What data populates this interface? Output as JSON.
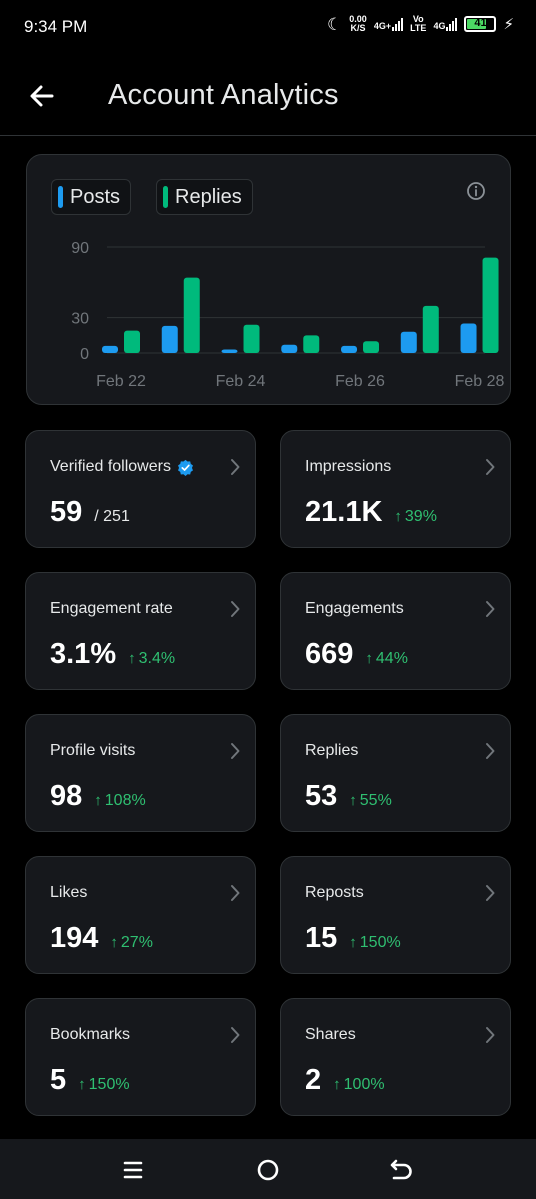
{
  "status": {
    "time": "9:34 PM",
    "speed_top": "0.00",
    "speed_bottom": "K/S",
    "sig1_label": "4G+",
    "volte_top": "Vo",
    "volte_bottom": "LTE",
    "sig2_label": "4G",
    "battery": "41"
  },
  "header": {
    "title": "Account Analytics"
  },
  "legend": {
    "posts": "Posts",
    "replies": "Replies"
  },
  "colors": {
    "posts": "#1d9bf0",
    "replies": "#00ba7c",
    "positive": "#2fbf71",
    "verified": "#1d9bf0"
  },
  "chart_data": {
    "type": "bar",
    "categories": [
      "Feb 22",
      "Feb 23",
      "Feb 24",
      "Feb 25",
      "Feb 26",
      "Feb 27",
      "Feb 28"
    ],
    "tick_labels": [
      "Feb 22",
      "Feb 24",
      "Feb 26",
      "Feb 28"
    ],
    "series": [
      {
        "name": "Posts",
        "values": [
          6,
          23,
          3,
          7,
          6,
          18,
          25
        ]
      },
      {
        "name": "Replies",
        "values": [
          19,
          64,
          24,
          15,
          10,
          40,
          81
        ]
      }
    ],
    "y_ticks": [
      0,
      30,
      90
    ],
    "ylim": [
      0,
      90
    ],
    "grid": true,
    "legend_position": "top-left"
  },
  "stats": [
    {
      "label": "Verified followers",
      "value": "59",
      "total": "/ 251",
      "delta": "",
      "verified": true
    },
    {
      "label": "Impressions",
      "value": "21.1K",
      "total": "",
      "delta": "39%"
    },
    {
      "label": "Engagement rate",
      "value": "3.1%",
      "total": "",
      "delta": "3.4%"
    },
    {
      "label": "Engagements",
      "value": "669",
      "total": "",
      "delta": "44%"
    },
    {
      "label": "Profile visits",
      "value": "98",
      "total": "",
      "delta": "108%"
    },
    {
      "label": "Replies",
      "value": "53",
      "total": "",
      "delta": "55%"
    },
    {
      "label": "Likes",
      "value": "194",
      "total": "",
      "delta": "27%"
    },
    {
      "label": "Reposts",
      "value": "15",
      "total": "",
      "delta": "150%"
    },
    {
      "label": "Bookmarks",
      "value": "5",
      "total": "",
      "delta": "150%"
    },
    {
      "label": "Shares",
      "value": "2",
      "total": "",
      "delta": "100%"
    }
  ],
  "icons": {
    "back": "back-arrow-icon",
    "info": "info-icon",
    "chevron": "chevron-right-icon",
    "delta": "up-arrow-icon",
    "nav_recents": "recents-icon",
    "nav_home": "home-icon",
    "nav_back": "back-icon"
  }
}
